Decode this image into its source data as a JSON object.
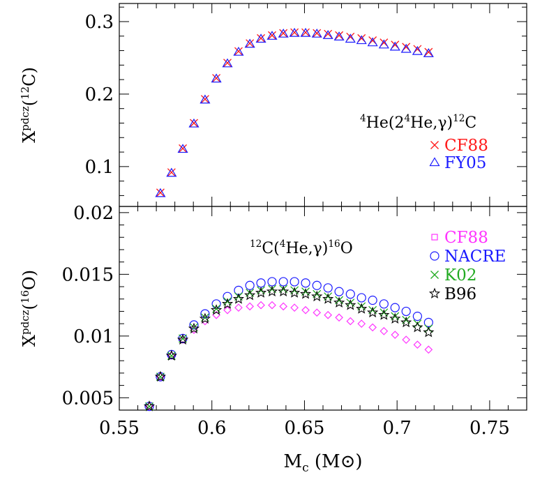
{
  "chart_data": [
    {
      "type": "scatter",
      "panel": "top",
      "title": "",
      "xlabel": "",
      "ylabel": "Xpdcz(12C)",
      "ylabel_parts": {
        "symbol": "X",
        "sup": "pdcz",
        "open": "(",
        "iso": "12",
        "elem": "C",
        "close": ")"
      },
      "xlim": [
        0.55,
        0.77
      ],
      "ylim": [
        0.045,
        0.325
      ],
      "yticks": [
        0.1,
        0.2,
        0.3
      ],
      "ytick_labels": [
        "0.1",
        "0.2",
        "0.3"
      ],
      "annotation": "4He(24He,γ)12C",
      "annotation_parts": [
        {
          "t": "4",
          "sup": true
        },
        {
          "t": "He(2",
          "sup": false
        },
        {
          "t": "4",
          "sup": true
        },
        {
          "t": "He,γ)",
          "sup": false
        },
        {
          "t": "12",
          "sup": true
        },
        {
          "t": "C",
          "sup": false
        }
      ],
      "legend_position": "right",
      "series": [
        {
          "name": "CF88",
          "marker": "cross",
          "color": "#ff1a1a",
          "x": [
            0.5722,
            0.5782,
            0.5843,
            0.5903,
            0.5963,
            0.6024,
            0.6084,
            0.6144,
            0.6205,
            0.6265,
            0.6325,
            0.6386,
            0.6446,
            0.6506,
            0.6567,
            0.6627,
            0.6687,
            0.6748,
            0.6808,
            0.6868,
            0.6929,
            0.6989,
            0.7049,
            0.711,
            0.717
          ],
          "y": [
            0.064,
            0.092,
            0.125,
            0.16,
            0.193,
            0.222,
            0.243,
            0.259,
            0.27,
            0.277,
            0.281,
            0.284,
            0.285,
            0.285,
            0.284,
            0.283,
            0.281,
            0.279,
            0.277,
            0.274,
            0.271,
            0.268,
            0.265,
            0.262,
            0.258
          ]
        },
        {
          "name": "FY05",
          "marker": "triangle",
          "color": "#1a1aff",
          "x": [
            0.5722,
            0.5782,
            0.5843,
            0.5903,
            0.5963,
            0.6024,
            0.6084,
            0.6144,
            0.6205,
            0.6265,
            0.6325,
            0.6386,
            0.6446,
            0.6506,
            0.6567,
            0.6627,
            0.6687,
            0.6748,
            0.6808,
            0.6868,
            0.6929,
            0.6989,
            0.7049,
            0.711,
            0.717
          ],
          "y": [
            0.063,
            0.091,
            0.124,
            0.159,
            0.192,
            0.221,
            0.242,
            0.258,
            0.269,
            0.276,
            0.28,
            0.283,
            0.284,
            0.284,
            0.283,
            0.281,
            0.279,
            0.276,
            0.274,
            0.271,
            0.268,
            0.265,
            0.262,
            0.259,
            0.256
          ]
        }
      ]
    },
    {
      "type": "scatter",
      "panel": "bottom",
      "title": "",
      "xlabel": "Mc (M⊙)",
      "xlabel_parts": {
        "M": "M",
        "sub": "c",
        "unit": "(M⊙)"
      },
      "ylabel": "Xpdcz(16O)",
      "ylabel_parts": {
        "symbol": "X",
        "sup": "pdcz",
        "open": "(",
        "iso": "16",
        "elem": "O",
        "close": ")"
      },
      "xlim": [
        0.55,
        0.77
      ],
      "ylim": [
        0.004,
        0.0205
      ],
      "xticks": [
        0.55,
        0.6,
        0.65,
        0.7,
        0.75
      ],
      "xtick_labels": [
        "0.55",
        "0.6",
        "0.65",
        "0.7",
        "0.75"
      ],
      "yticks": [
        0.005,
        0.01,
        0.015,
        0.02
      ],
      "ytick_labels": [
        "0.005",
        "0.01",
        "0.015",
        "0.02"
      ],
      "annotation": "12C(4He,γ)16O",
      "annotation_parts": [
        {
          "t": "12",
          "sup": true
        },
        {
          "t": "C(",
          "sup": false
        },
        {
          "t": "4",
          "sup": true
        },
        {
          "t": "He,γ)",
          "sup": false
        },
        {
          "t": "16",
          "sup": true
        },
        {
          "t": "O",
          "sup": false
        }
      ],
      "legend_position": "top-right",
      "series": [
        {
          "name": "CF88",
          "marker": "diamond",
          "color": "#ff33ff",
          "x": [
            0.5662,
            0.5722,
            0.5782,
            0.5843,
            0.5903,
            0.5963,
            0.6024,
            0.6084,
            0.6144,
            0.6205,
            0.6265,
            0.6325,
            0.6386,
            0.6446,
            0.6506,
            0.6567,
            0.6627,
            0.6687,
            0.6748,
            0.6808,
            0.6868,
            0.6929,
            0.6989,
            0.7049,
            0.711,
            0.717
          ],
          "y": [
            0.0043,
            0.0067,
            0.0084,
            0.0097,
            0.0105,
            0.0112,
            0.0117,
            0.0121,
            0.0123,
            0.0124,
            0.0125,
            0.0125,
            0.0124,
            0.0123,
            0.0121,
            0.0119,
            0.0117,
            0.0115,
            0.0112,
            0.011,
            0.0107,
            0.0104,
            0.0101,
            0.0097,
            0.0093,
            0.0089
          ]
        },
        {
          "name": "NACRE",
          "marker": "circle",
          "color": "#1a1aff",
          "x": [
            0.5662,
            0.5722,
            0.5782,
            0.5843,
            0.5903,
            0.5963,
            0.6024,
            0.6084,
            0.6144,
            0.6205,
            0.6265,
            0.6325,
            0.6386,
            0.6446,
            0.6506,
            0.6567,
            0.6627,
            0.6687,
            0.6748,
            0.6808,
            0.6868,
            0.6929,
            0.6989,
            0.7049,
            0.711,
            0.717
          ],
          "y": [
            0.0043,
            0.0067,
            0.0085,
            0.0098,
            0.0109,
            0.0118,
            0.0126,
            0.0132,
            0.0137,
            0.0141,
            0.0143,
            0.0144,
            0.0144,
            0.0144,
            0.0143,
            0.0141,
            0.0139,
            0.0136,
            0.0134,
            0.0131,
            0.0129,
            0.0126,
            0.0123,
            0.012,
            0.0116,
            0.0111
          ]
        },
        {
          "name": "K02",
          "marker": "x",
          "color": "#22aa22",
          "x": [
            0.5662,
            0.5722,
            0.5782,
            0.5843,
            0.5903,
            0.5963,
            0.6024,
            0.6084,
            0.6144,
            0.6205,
            0.6265,
            0.6325,
            0.6386,
            0.6446,
            0.6506,
            0.6567,
            0.6627,
            0.6687,
            0.6748,
            0.6808,
            0.6868,
            0.6929,
            0.6989,
            0.7049,
            0.711,
            0.717
          ],
          "y": [
            0.0043,
            0.0067,
            0.0084,
            0.0098,
            0.0107,
            0.0115,
            0.0122,
            0.0128,
            0.0132,
            0.0135,
            0.0137,
            0.0138,
            0.0138,
            0.0137,
            0.0136,
            0.0134,
            0.0132,
            0.0129,
            0.0127,
            0.0124,
            0.0121,
            0.0119,
            0.0116,
            0.0113,
            0.011,
            0.0106
          ]
        },
        {
          "name": "B96",
          "marker": "star",
          "color": "#000000",
          "x": [
            0.5662,
            0.5722,
            0.5782,
            0.5843,
            0.5903,
            0.5963,
            0.6024,
            0.6084,
            0.6144,
            0.6205,
            0.6265,
            0.6325,
            0.6386,
            0.6446,
            0.6506,
            0.6567,
            0.6627,
            0.6687,
            0.6748,
            0.6808,
            0.6868,
            0.6929,
            0.6989,
            0.7049,
            0.711,
            0.717
          ],
          "y": [
            0.0043,
            0.0067,
            0.0084,
            0.0097,
            0.0106,
            0.0114,
            0.0121,
            0.0126,
            0.013,
            0.0133,
            0.0135,
            0.0136,
            0.0136,
            0.0135,
            0.0134,
            0.0132,
            0.013,
            0.0127,
            0.0125,
            0.0122,
            0.0119,
            0.0117,
            0.0114,
            0.0111,
            0.0107,
            0.0103
          ]
        }
      ]
    }
  ]
}
